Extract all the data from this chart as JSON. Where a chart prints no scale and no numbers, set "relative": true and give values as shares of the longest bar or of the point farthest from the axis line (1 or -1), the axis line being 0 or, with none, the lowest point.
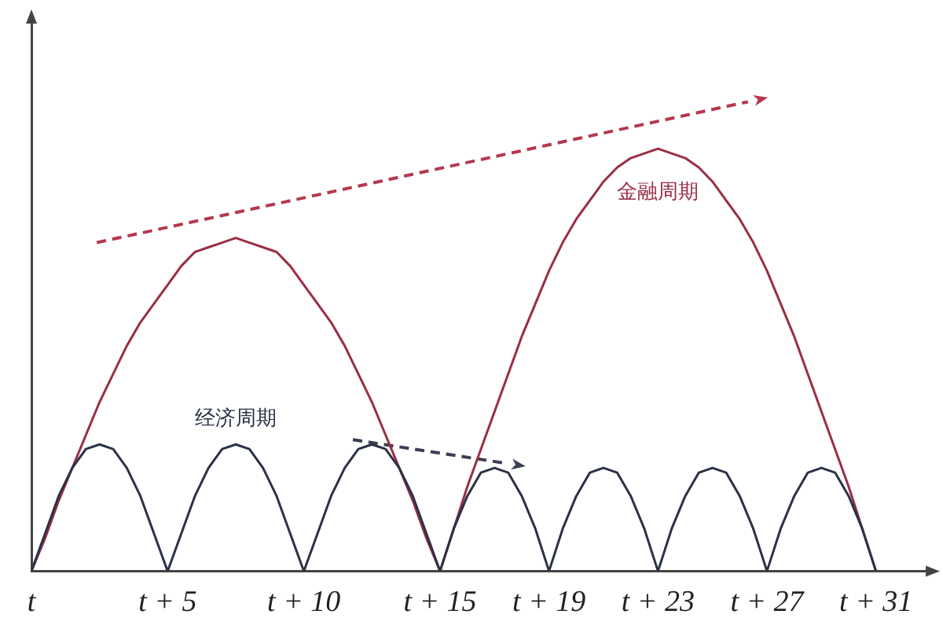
{
  "chart_data": {
    "type": "line",
    "relative": true,
    "x": [
      0,
      0.5,
      1,
      1.5,
      2,
      2.5,
      3,
      3.5,
      4,
      4.5,
      5,
      5.5,
      6,
      6.5,
      7,
      7.5,
      8,
      8.5,
      9,
      9.5,
      10,
      10.5,
      11,
      11.5,
      12,
      12.5,
      13,
      13.5,
      14,
      14.5,
      15,
      15.5,
      16,
      16.5,
      17,
      17.5,
      18,
      18.5,
      19,
      19.5,
      20,
      20.5,
      21,
      21.5,
      22,
      22.5,
      23,
      23.5,
      24,
      24.5,
      25,
      25.5,
      26,
      26.5,
      27,
      27.5,
      28,
      28.5,
      29,
      29.5,
      30,
      30.5,
      31
    ],
    "xlim": [
      0,
      33
    ],
    "xticks": [
      {
        "value": 0,
        "label": "t"
      },
      {
        "value": 5,
        "label": "t + 5"
      },
      {
        "value": 10,
        "label": "t + 10"
      },
      {
        "value": 15,
        "label": "t + 15"
      },
      {
        "value": 19,
        "label": "t + 19"
      },
      {
        "value": 23,
        "label": "t + 23"
      },
      {
        "value": 27,
        "label": "t + 27"
      },
      {
        "value": 31,
        "label": "t + 31"
      }
    ],
    "tick_labels": "x",
    "grid": false,
    "legend": false,
    "marker": "none",
    "line_style": "solid",
    "series": [
      {
        "name": "经济周期",
        "color": "#2b3246",
        "values": [
          0,
          0.08,
          0.16,
          0.22,
          0.26,
          0.27,
          0.26,
          0.22,
          0.16,
          0.08,
          0,
          0.08,
          0.16,
          0.22,
          0.26,
          0.27,
          0.26,
          0.22,
          0.16,
          0.08,
          0,
          0.08,
          0.16,
          0.22,
          0.26,
          0.27,
          0.26,
          0.22,
          0.16,
          0.08,
          0,
          0.09,
          0.16,
          0.21,
          0.22,
          0.21,
          0.16,
          0.09,
          0,
          0.09,
          0.16,
          0.21,
          0.22,
          0.21,
          0.16,
          0.09,
          0,
          0.09,
          0.16,
          0.21,
          0.22,
          0.21,
          0.16,
          0.09,
          0,
          0.09,
          0.16,
          0.21,
          0.22,
          0.21,
          0.16,
          0.09,
          0
        ]
      },
      {
        "name": "金融周期",
        "color": "#9a2e44",
        "values": [
          0,
          0.07,
          0.15,
          0.22,
          0.29,
          0.36,
          0.42,
          0.48,
          0.53,
          0.57,
          0.61,
          0.65,
          0.68,
          0.69,
          0.7,
          0.71,
          0.7,
          0.69,
          0.68,
          0.65,
          0.61,
          0.57,
          0.53,
          0.48,
          0.42,
          0.36,
          0.29,
          0.22,
          0.15,
          0.07,
          0,
          0.09,
          0.18,
          0.26,
          0.34,
          0.42,
          0.5,
          0.57,
          0.64,
          0.7,
          0.75,
          0.79,
          0.83,
          0.86,
          0.88,
          0.89,
          0.9,
          0.89,
          0.88,
          0.86,
          0.83,
          0.79,
          0.75,
          0.7,
          0.64,
          0.57,
          0.5,
          0.42,
          0.34,
          0.26,
          0.18,
          0.09,
          0
        ]
      },
      {
        "type": "line",
        "color": "#b3394f",
        "line_style": "dashed",
        "x": [
          2.4,
          26.3
        ],
        "values": [
          0.7,
          1
        ]
      },
      {
        "type": "line",
        "color": "#3a3f52",
        "line_style": "dashed",
        "x": [
          11.8,
          17.4
        ],
        "values": [
          0.28,
          0.23
        ]
      }
    ]
  }
}
